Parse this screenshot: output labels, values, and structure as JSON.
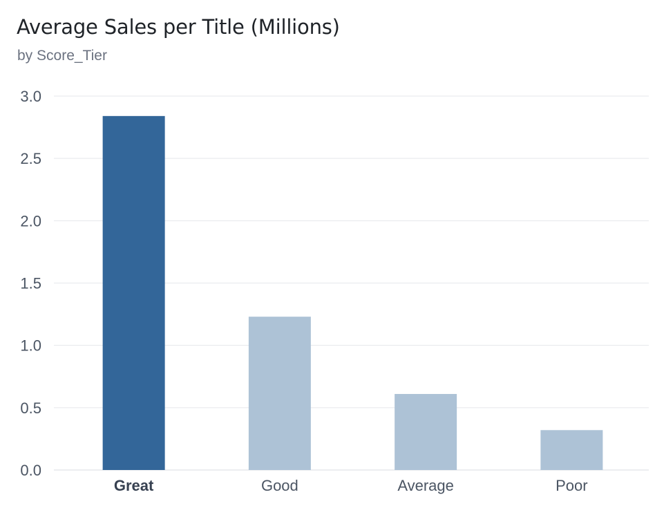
{
  "chart_data": {
    "type": "bar",
    "title": "Average Sales per Title (Millions)",
    "subtitle": "by Score_Tier",
    "categories": [
      "Great",
      "Good",
      "Average",
      "Poor"
    ],
    "values": [
      2.84,
      1.23,
      0.61,
      0.32
    ],
    "highlight": "Great",
    "ylim": [
      0,
      3.0
    ],
    "yticks": [
      "0.0",
      "0.5",
      "1.0",
      "1.5",
      "2.0",
      "2.5",
      "3.0"
    ],
    "grid": true,
    "colors": {
      "highlight": "#336699",
      "default": "#adc2d6",
      "grid": "#e5e7eb"
    }
  }
}
